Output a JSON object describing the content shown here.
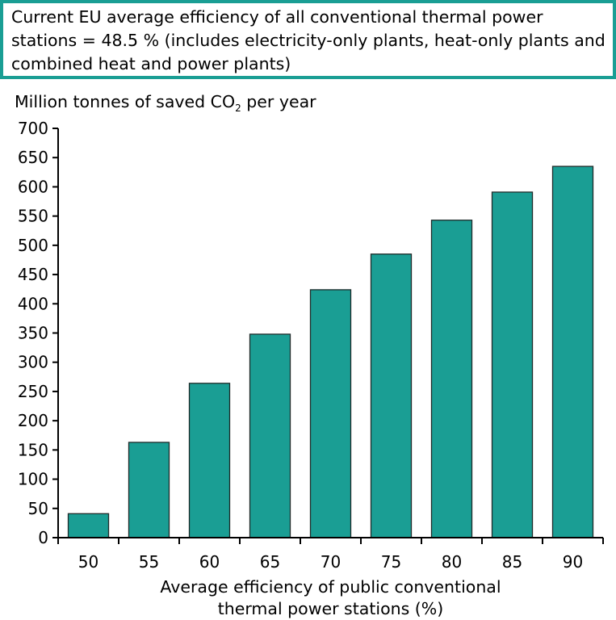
{
  "note": {
    "text": "Current EU average efficiency of all conventional thermal power stations = 48.5 % (includes electricity-only plants, heat-only plants and combined heat and power plants)"
  },
  "colors": {
    "bar": "#1a9e94",
    "bar_border": "#1f2b2a",
    "note_border": "#1a9e94",
    "axis": "#000000"
  },
  "chart_data": {
    "type": "bar",
    "title": "",
    "ylabel_main": "Million tonnes of saved CO",
    "ylabel_sub": "2",
    "ylabel_tail": " per year",
    "xlabel_line1": "Average efficiency of public conventional",
    "xlabel_line2": "thermal power stations (%)",
    "categories": [
      "50",
      "55",
      "60",
      "65",
      "70",
      "75",
      "80",
      "85",
      "90"
    ],
    "values": [
      41,
      163,
      264,
      348,
      424,
      485,
      543,
      591,
      635
    ],
    "ylim": [
      0,
      700
    ],
    "yticks": [
      0,
      50,
      100,
      150,
      200,
      250,
      300,
      350,
      400,
      450,
      500,
      550,
      600,
      650,
      700
    ],
    "grid": false,
    "legend": "none"
  }
}
